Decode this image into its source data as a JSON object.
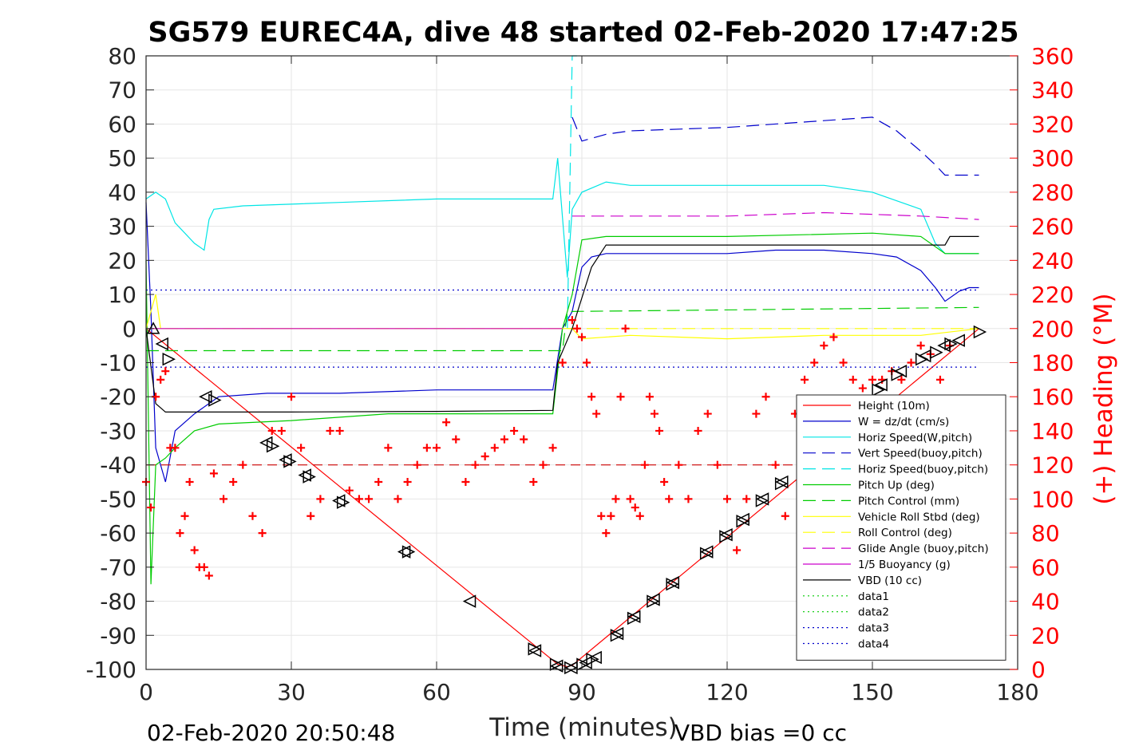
{
  "chart_data": {
    "type": "line",
    "title": "SG579 EUREC4A, dive 48 started 02-Feb-2020 17:47:25",
    "xlabel": "Time (minutes)",
    "ylabel": "",
    "y2label": "(+) Heading (°M)",
    "xlim": [
      0,
      180
    ],
    "ylim": [
      -100,
      80
    ],
    "y2lim": [
      0,
      360
    ],
    "xticks": [
      "0",
      "30",
      "60",
      "90",
      "120",
      "150",
      "180"
    ],
    "yticks": [
      "80",
      "70",
      "60",
      "50",
      "40",
      "30",
      "20",
      "10",
      "0",
      "-10",
      "-20",
      "-30",
      "-40",
      "-50",
      "-60",
      "-70",
      "-80",
      "-90",
      "-100"
    ],
    "y2ticks": [
      "360",
      "340",
      "320",
      "300",
      "280",
      "260",
      "240",
      "220",
      "200",
      "180",
      "160",
      "140",
      "120",
      "100",
      "80",
      "60",
      "40",
      "20",
      "0"
    ],
    "grid": true,
    "legend_position": "bottom-right",
    "footer_left": "02-Feb-2020 20:50:48",
    "footer_right": "VBD bias =0 cc",
    "series": [
      {
        "name": "Height (10m)",
        "color": "#ff0000",
        "style": "solid",
        "x": [
          0,
          85,
          87,
          88,
          172
        ],
        "y": [
          0,
          -98.5,
          -99.2,
          -98.8,
          0
        ]
      },
      {
        "name": "W = dz/dt (cm/s)",
        "color": "#0000cc",
        "style": "solid",
        "x": [
          0,
          1,
          2,
          4,
          6,
          10,
          15,
          25,
          40,
          60,
          80,
          84,
          86,
          88,
          90,
          92,
          95,
          100,
          110,
          120,
          130,
          140,
          150,
          155,
          160,
          163,
          165,
          168,
          170,
          172
        ],
        "y": [
          37,
          5,
          -35,
          -45,
          -30,
          -25,
          -20,
          -19,
          -19,
          -18,
          -18,
          -18,
          0,
          5,
          18,
          21,
          22,
          22,
          22,
          22,
          23,
          23,
          22,
          21,
          17,
          12,
          8,
          11,
          12,
          12
        ]
      },
      {
        "name": "Horiz Speed(W,pitch)",
        "color": "#00e5e5",
        "style": "solid",
        "x": [
          0,
          2,
          4,
          6,
          10,
          12,
          13,
          14,
          20,
          40,
          60,
          80,
          84,
          85,
          87,
          88,
          90,
          95,
          100,
          120,
          140,
          150,
          160,
          163,
          165,
          170,
          172
        ],
        "y": [
          38,
          40,
          38,
          31,
          25,
          23,
          32,
          35,
          36,
          37,
          38,
          38,
          38,
          50,
          15,
          35,
          40,
          43,
          42,
          42,
          42,
          40,
          35,
          25,
          22,
          22,
          22
        ]
      },
      {
        "name": "Vert Speed(buoy,pitch)",
        "color": "#0000cc",
        "style": "dashed",
        "x": [
          88,
          90,
          95,
          100,
          120,
          140,
          150,
          155,
          160,
          163,
          165,
          170,
          172
        ],
        "y": [
          62,
          55,
          57,
          58,
          59,
          61,
          62,
          58,
          52,
          48,
          45,
          45,
          45
        ]
      },
      {
        "name": "Horiz Speed(buoy,pitch)",
        "color": "#00e5e5",
        "style": "dashed",
        "x": [
          87,
          88,
          88.5,
          89
        ],
        "y": [
          0,
          80,
          80,
          80
        ]
      },
      {
        "name": "Pitch Up (deg)",
        "color": "#00cc00",
        "style": "solid",
        "x": [
          0,
          1,
          2,
          4,
          6,
          10,
          15,
          30,
          50,
          70,
          84,
          86,
          88,
          90,
          95,
          120,
          150,
          160,
          165,
          172
        ],
        "y": [
          20,
          -75,
          -40,
          -38,
          -35,
          -30,
          -28,
          -27,
          -25,
          -25,
          -25,
          0,
          10,
          26,
          27,
          27,
          28,
          27,
          22,
          22
        ]
      },
      {
        "name": "Pitch Control (mm)",
        "color": "#00cc00",
        "style": "dashed",
        "x": [
          0,
          86,
          87,
          172
        ],
        "y": [
          -6.5,
          -6.5,
          5,
          6.2
        ]
      },
      {
        "name": "Vehicle Roll Stbd (deg)",
        "color": "#ffff00",
        "style": "solid",
        "x": [
          0,
          2,
          3,
          5,
          10,
          20,
          30,
          40,
          50,
          60,
          70,
          80,
          86,
          88,
          90,
          100,
          120,
          140,
          160,
          172
        ],
        "y": [
          0,
          10,
          0,
          0,
          0,
          0,
          0,
          0,
          0,
          0,
          0,
          0,
          0,
          0,
          -3,
          -2,
          -3,
          -2,
          -2,
          0
        ]
      },
      {
        "name": "Roll Control (deg)",
        "color": "#ffff00",
        "style": "dashed",
        "x": [
          0,
          172
        ],
        "y": [
          0,
          0
        ]
      },
      {
        "name": "Glide Angle (buoy,pitch)",
        "color": "#cc00cc",
        "style": "dashed",
        "x": [
          88,
          100,
          120,
          140,
          160,
          172
        ],
        "y": [
          33,
          33,
          33,
          34,
          33,
          32
        ]
      },
      {
        "name": "1/5 Buoyancy (g)",
        "color": "#cc00cc",
        "style": "solid",
        "x": [
          0,
          86
        ],
        "y": [
          0,
          0
        ]
      },
      {
        "name": "VBD (10 cc)",
        "color": "#000000",
        "style": "solid",
        "x": [
          0,
          2,
          4,
          10,
          30,
          60,
          84,
          85,
          88,
          92,
          95,
          120,
          165,
          166,
          172
        ],
        "y": [
          0,
          -22,
          -24.5,
          -24.5,
          -24.5,
          -24.3,
          -24,
          -10,
          0,
          18,
          24.5,
          24.5,
          24.5,
          27,
          27
        ]
      },
      {
        "name": "data1",
        "color": "#00cc00",
        "style": "dotted",
        "x": [],
        "y": []
      },
      {
        "name": "data2",
        "color": "#00cc00",
        "style": "dotted",
        "x": [],
        "y": []
      },
      {
        "name": "data3",
        "color": "#0000cc",
        "style": "dotted",
        "x": [
          0,
          172
        ],
        "y": [
          11.3,
          11.3
        ]
      },
      {
        "name": "data4",
        "color": "#0000cc",
        "style": "dotted",
        "x": [
          0,
          172
        ],
        "y": [
          -11.3,
          -11.3
        ]
      }
    ],
    "heading_target": {
      "color": "#cc0000",
      "style": "dashed",
      "x": [
        0,
        172
      ],
      "y2": [
        120,
        120
      ]
    },
    "heading_points": {
      "color": "#ff0000",
      "marker": "+",
      "axis": "right",
      "x": [
        0,
        1,
        2,
        3,
        4,
        5,
        6,
        7,
        8,
        9,
        10,
        11,
        12,
        13,
        14,
        16,
        18,
        20,
        22,
        24,
        26,
        28,
        30,
        32,
        34,
        36,
        38,
        40,
        42,
        44,
        46,
        48,
        50,
        52,
        54,
        56,
        58,
        60,
        62,
        64,
        66,
        68,
        70,
        72,
        74,
        76,
        78,
        80,
        82,
        84,
        86,
        88,
        89,
        90,
        91,
        92,
        93,
        94,
        95,
        96,
        97,
        98,
        99,
        100,
        101,
        102,
        103,
        104,
        105,
        106,
        107,
        108,
        110,
        112,
        114,
        116,
        118,
        120,
        122,
        124,
        126,
        128,
        130,
        132,
        134,
        136,
        138,
        140,
        142,
        144,
        146,
        148,
        150,
        152,
        154,
        156,
        158,
        160,
        162,
        164,
        166
      ],
      "y2": [
        110,
        95,
        160,
        170,
        175,
        130,
        130,
        80,
        90,
        110,
        70,
        60,
        60,
        55,
        115,
        100,
        110,
        120,
        90,
        80,
        140,
        140,
        160,
        130,
        90,
        100,
        140,
        140,
        105,
        100,
        100,
        110,
        130,
        100,
        110,
        120,
        130,
        130,
        145,
        135,
        110,
        120,
        125,
        130,
        135,
        140,
        135,
        110,
        120,
        130,
        180,
        205,
        200,
        195,
        180,
        160,
        150,
        90,
        80,
        90,
        100,
        160,
        200,
        100,
        95,
        90,
        120,
        160,
        150,
        140,
        110,
        100,
        120,
        100,
        140,
        150,
        120,
        100,
        70,
        100,
        150,
        160,
        120,
        90,
        150,
        170,
        180,
        190,
        195,
        180,
        170,
        165,
        170,
        170,
        175,
        170,
        180,
        190,
        185,
        170,
        190
      ]
    },
    "depth_markers": {
      "color": "#000000",
      "x": [
        1.5,
        3.5,
        4.5,
        12.5,
        14,
        25,
        26,
        29,
        29.5,
        33,
        33.5,
        40,
        40.5,
        53.5,
        54,
        67,
        80,
        80.5,
        84.5,
        85,
        87.5,
        88,
        90,
        91,
        92,
        93,
        97,
        97.5,
        100.5,
        101,
        104.5,
        105,
        108.5,
        109,
        115.5,
        116,
        119.5,
        120,
        123,
        123.5,
        127,
        127.5,
        131,
        131.5,
        151,
        152,
        155,
        156,
        160,
        161,
        163,
        165,
        166,
        168,
        172
      ],
      "y": [
        0,
        -4.5,
        -9,
        -20,
        -21,
        -33.5,
        -34.5,
        -38.5,
        -39,
        -43,
        -43.5,
        -50.5,
        -51,
        -65.5,
        -65.5,
        -80,
        -94,
        -94.5,
        -98.5,
        -99,
        -99.5,
        -99.5,
        -98.5,
        -98,
        -97,
        -96.5,
        -90,
        -89.5,
        -85,
        -84.5,
        -80,
        -79.5,
        -75,
        -74.5,
        -66,
        -65.5,
        -61,
        -60.5,
        -56.5,
        -56,
        -50.5,
        -50,
        -45.5,
        -45,
        -18,
        -16.5,
        -13.5,
        -12.5,
        -9,
        -8,
        -7,
        -5,
        -4.5,
        -3.5,
        -1
      ]
    }
  }
}
